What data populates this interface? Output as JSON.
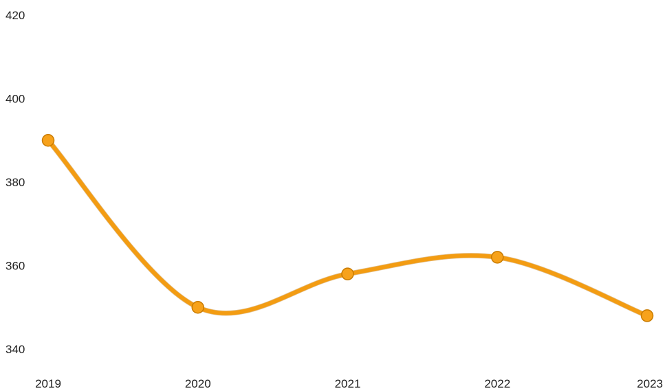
{
  "chart_data": {
    "type": "line",
    "categories": [
      "2019",
      "2020",
      "2021",
      "2022",
      "2023"
    ],
    "series": [
      {
        "values": [
          390,
          350,
          358,
          362,
          348
        ]
      }
    ],
    "y_ticks": [
      420,
      400,
      380,
      360,
      340
    ],
    "ylim": [
      340,
      420
    ],
    "xlabel": "",
    "ylabel": "",
    "title": "",
    "grid": false,
    "legend": "none",
    "smooth": true,
    "colors": {
      "line": "#f39c12",
      "point_fill": "#f7a21b",
      "point_stroke": "#c97b00",
      "text": "#222222"
    }
  }
}
